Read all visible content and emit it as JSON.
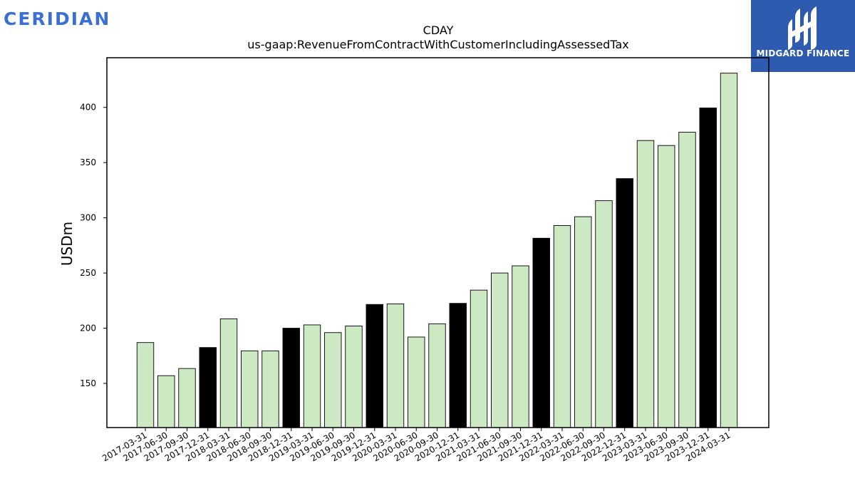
{
  "header": {
    "company_logo_text": "CERIDIAN",
    "badge_text": "MIDGARD FINANCE"
  },
  "colors": {
    "logo_blue": "#3a6fd6",
    "badge_blue": "#2e5bb0",
    "quarter_bar": "#cce9c4",
    "year_end_bar": "#000000"
  },
  "chart_data": {
    "type": "bar",
    "title": "CDAY",
    "subtitle": "us-gaap:RevenueFromContractWithCustomerIncludingAssessedTax",
    "xlabel": "",
    "ylabel": "USDm",
    "ylim": [
      110,
      445
    ],
    "yticks": [
      150,
      200,
      250,
      300,
      350,
      400
    ],
    "grid": false,
    "legend": "none",
    "categories": [
      "2017-03-31",
      "2017-06-30",
      "2017-09-30",
      "2017-12-31",
      "2018-03-31",
      "2018-06-30",
      "2018-09-30",
      "2018-12-31",
      "2019-03-31",
      "2019-06-30",
      "2019-09-30",
      "2019-12-31",
      "2020-03-31",
      "2020-06-30",
      "2020-09-30",
      "2020-12-31",
      "2021-03-31",
      "2021-06-30",
      "2021-09-30",
      "2021-12-31",
      "2022-03-31",
      "2022-06-30",
      "2022-09-30",
      "2022-12-31",
      "2023-03-31",
      "2023-06-30",
      "2023-09-30",
      "2023-12-31",
      "2024-03-31"
    ],
    "values": [
      187,
      157,
      163.5,
      182.5,
      208.5,
      179.5,
      179.5,
      200,
      203,
      196,
      202,
      221.5,
      222,
      192,
      204,
      222.5,
      234.5,
      250,
      256.5,
      281.5,
      293,
      301,
      315.5,
      335.5,
      370,
      365.5,
      377.5,
      399.5,
      431
    ],
    "highlight": [
      "2017-12-31",
      "2018-12-31",
      "2019-12-31",
      "2020-12-31",
      "2021-12-31",
      "2022-12-31",
      "2023-12-31"
    ]
  }
}
